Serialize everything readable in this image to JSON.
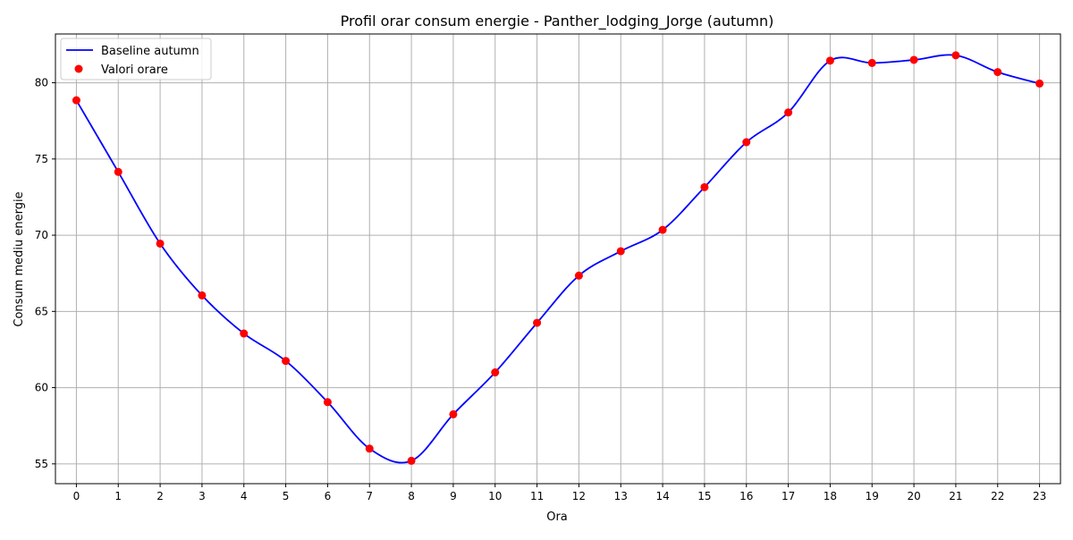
{
  "chart_data": {
    "type": "line",
    "title": "Profil orar consum energie - Panther_lodging_Jorge (autumn)",
    "xlabel": "Ora",
    "ylabel": "Consum mediu energie",
    "x": [
      0,
      1,
      2,
      3,
      4,
      5,
      6,
      7,
      8,
      9,
      10,
      11,
      12,
      13,
      14,
      15,
      16,
      17,
      18,
      19,
      20,
      21,
      22,
      23
    ],
    "xlim": [
      -0.5,
      23.5
    ],
    "ylim": [
      53.7,
      83.2
    ],
    "yticks": [
      55,
      60,
      65,
      70,
      75,
      80
    ],
    "grid": true,
    "legend_position": "top-left",
    "series": [
      {
        "name": "Baseline autumn",
        "style": "smooth-line",
        "color": "#0000ff",
        "values": [
          78.85,
          74.15,
          69.45,
          66.05,
          63.55,
          61.75,
          59.05,
          56.0,
          55.2,
          58.25,
          61.0,
          64.25,
          67.35,
          68.95,
          70.35,
          73.15,
          76.1,
          78.05,
          81.45,
          81.3,
          81.5,
          81.8,
          80.7,
          79.95
        ]
      },
      {
        "name": "Valori orare",
        "style": "scatter",
        "color": "#ff0000",
        "values": [
          78.85,
          74.15,
          69.45,
          66.05,
          63.55,
          61.75,
          59.05,
          56.0,
          55.2,
          58.25,
          61.0,
          64.25,
          67.35,
          68.95,
          70.35,
          73.15,
          76.1,
          78.05,
          81.45,
          81.3,
          81.5,
          81.8,
          80.7,
          79.95
        ]
      }
    ]
  }
}
